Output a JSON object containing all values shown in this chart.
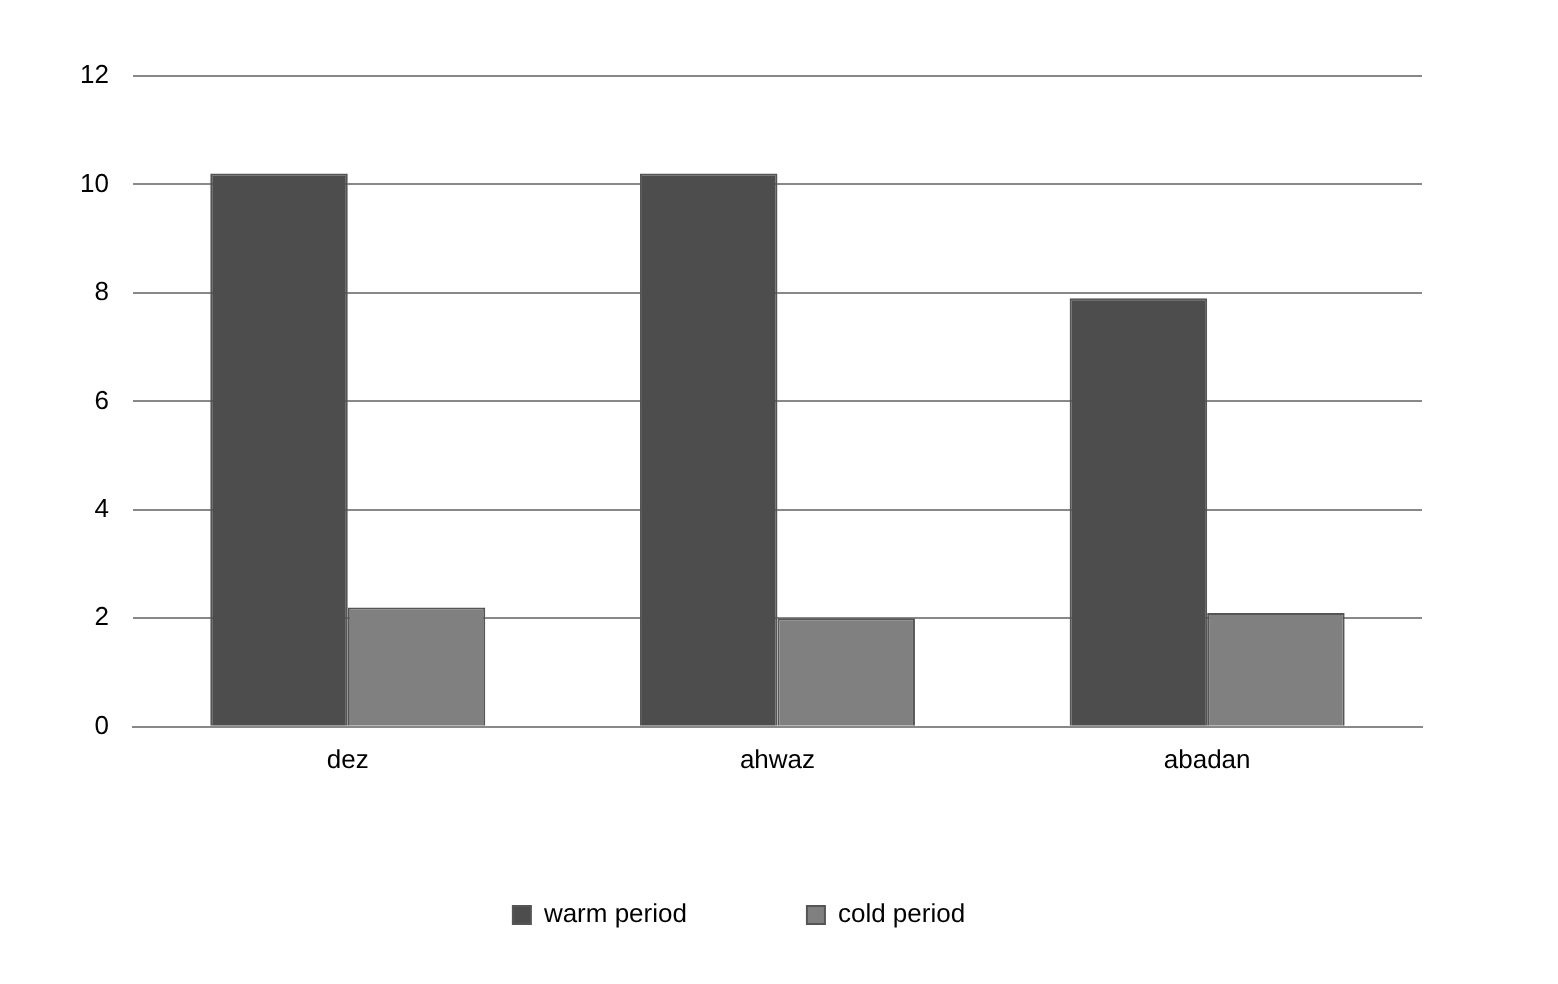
{
  "chart_data": {
    "type": "bar",
    "categories": [
      "dez",
      "ahwaz",
      "abadan"
    ],
    "series": [
      {
        "name": "warm period",
        "color": "#4d4d4d",
        "values": [
          10.2,
          10.2,
          7.9
        ]
      },
      {
        "name": "cold period",
        "color": "#808080",
        "values": [
          2.2,
          2.0,
          2.1
        ]
      }
    ],
    "ylim": [
      0,
      12
    ],
    "yticks": [
      0,
      2,
      4,
      6,
      8,
      10,
      12
    ],
    "grid": "y",
    "legend": "bottom"
  }
}
